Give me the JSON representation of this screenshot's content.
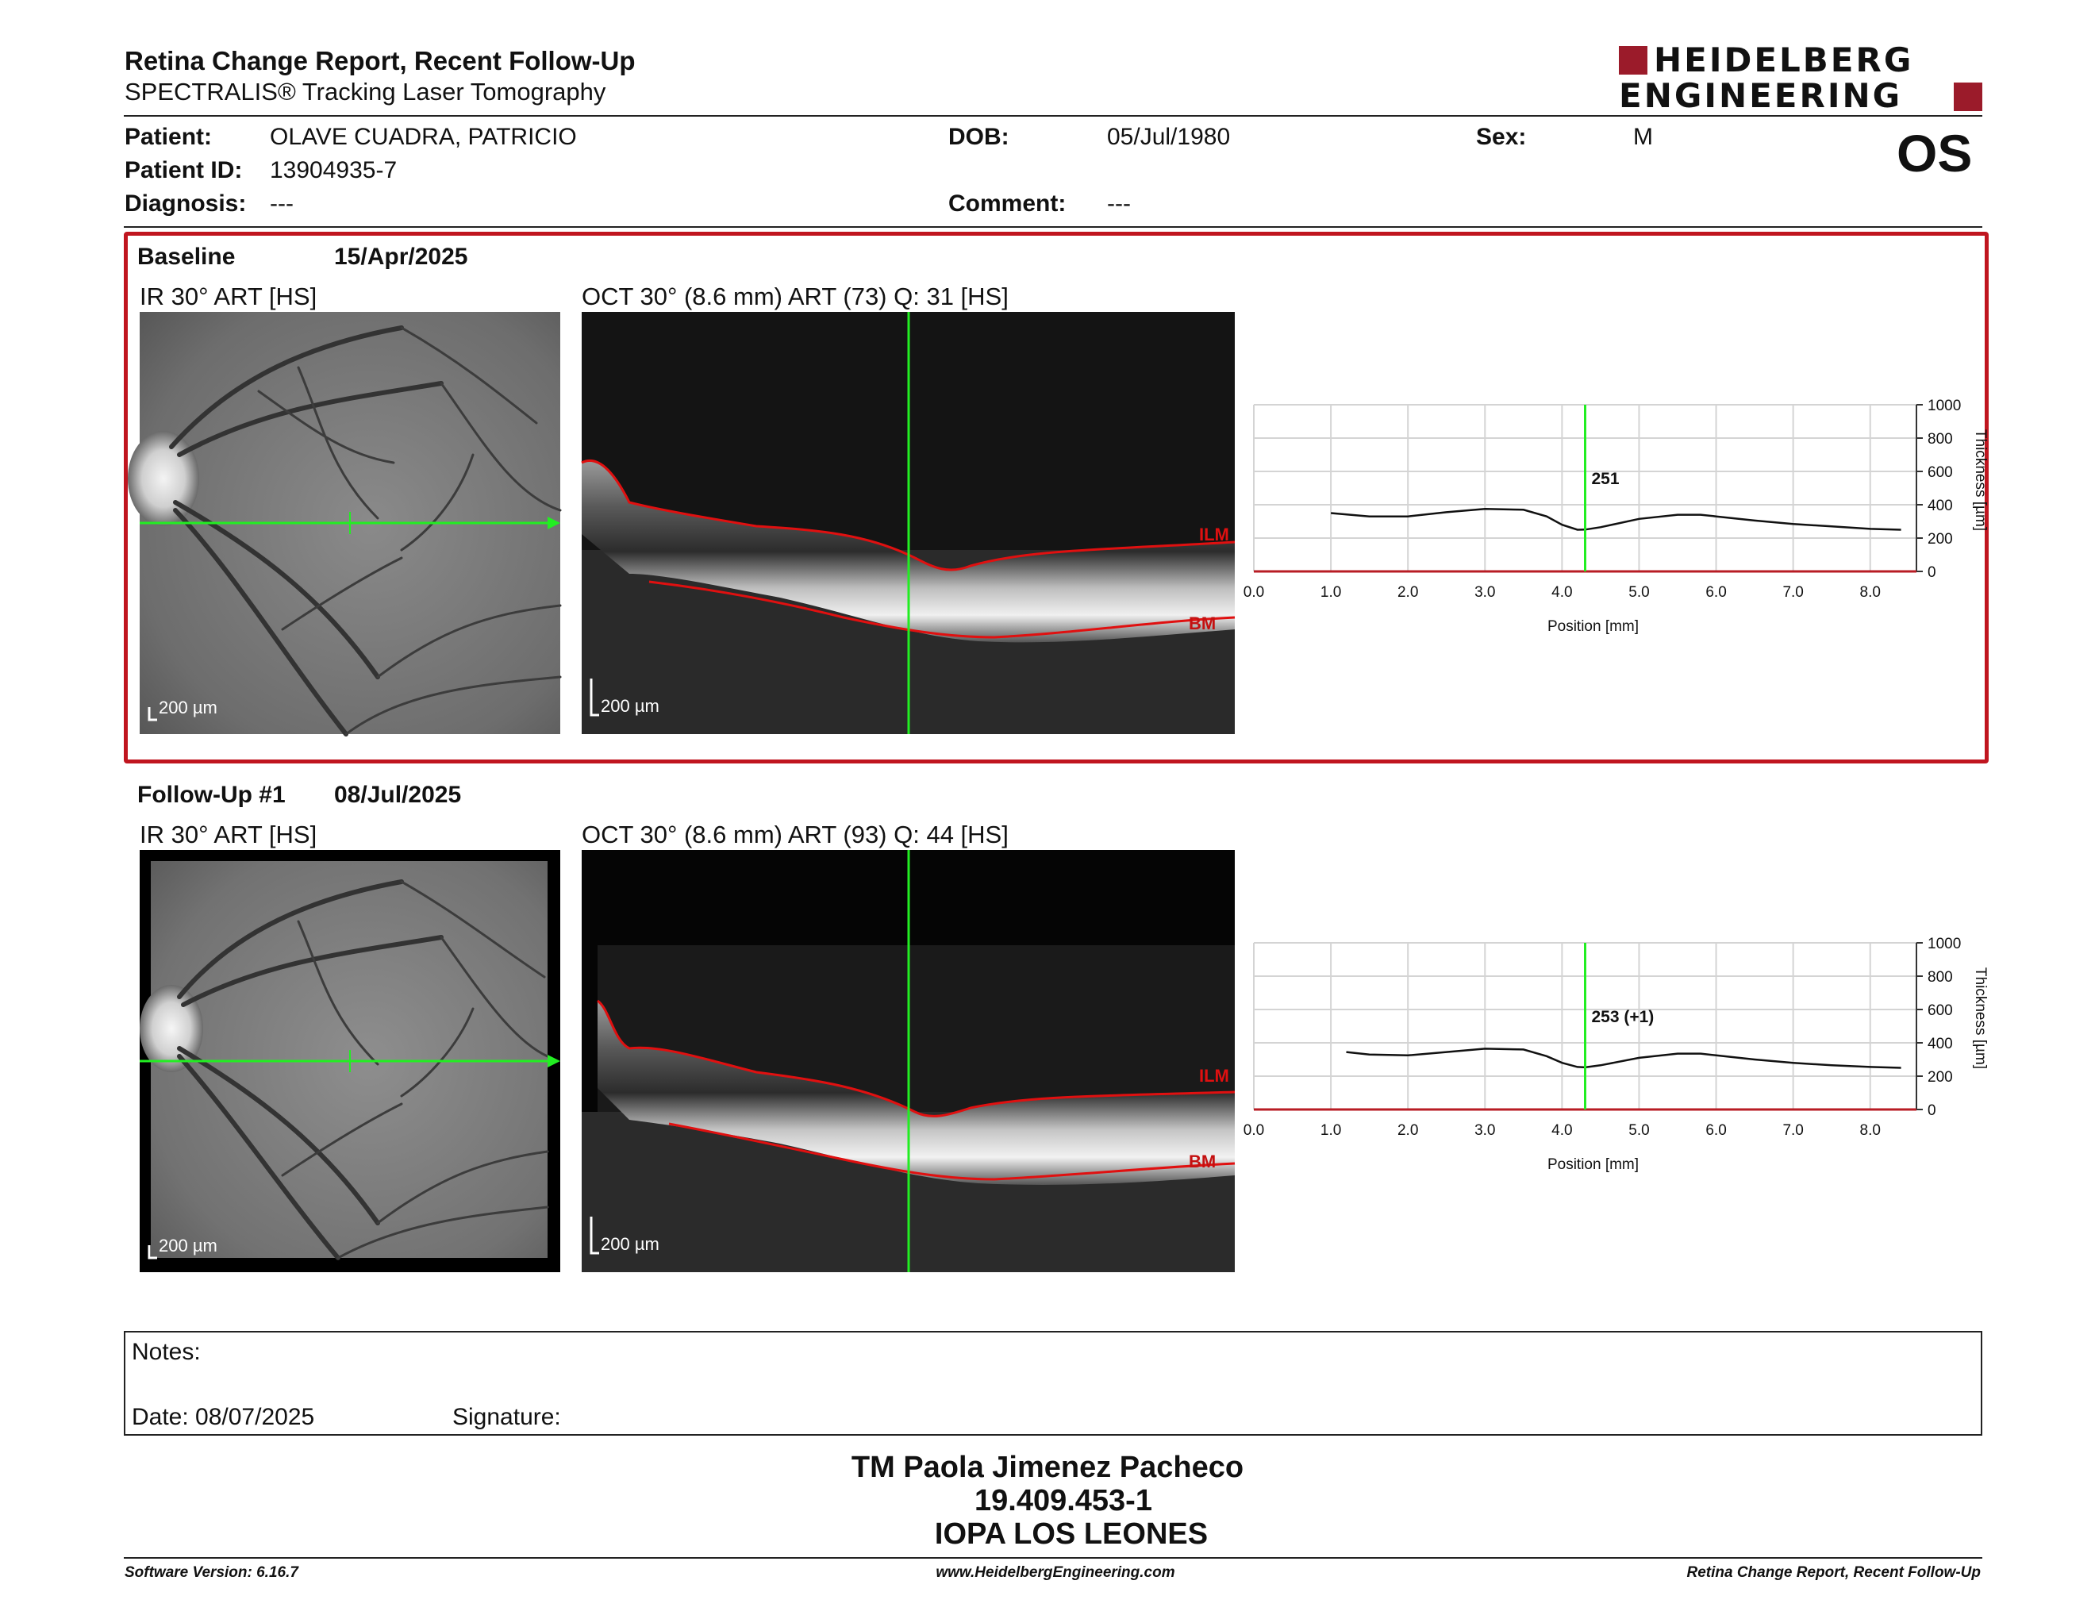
{
  "header": {
    "title": "Retina Change Report, Recent Follow-Up",
    "subtitle": "SPECTRALIS® Tracking Laser Tomography",
    "logo_line1": "HEIDELBERG",
    "logo_line2": "ENGINEERING",
    "eye": "OS"
  },
  "patient": {
    "patient_label": "Patient:",
    "patient_value": "OLAVE CUADRA, PATRICIO",
    "id_label": "Patient ID:",
    "id_value": "13904935-7",
    "diagnosis_label": "Diagnosis:",
    "diagnosis_value": "---",
    "dob_label": "DOB:",
    "dob_value": "05/Jul/1980",
    "comment_label": "Comment:",
    "comment_value": "---",
    "sex_label": "Sex:",
    "sex_value": "M"
  },
  "baseline": {
    "label": "Baseline",
    "date": "15/Apr/2025",
    "ir_caption": "IR 30° ART [HS]",
    "oct_caption": "OCT 30° (8.6 mm) ART (73) Q: 31 [HS]",
    "scale": "200 µm",
    "ilm": "ILM",
    "bm": "BM"
  },
  "followup": {
    "label": "Follow-Up #1",
    "date": "08/Jul/2025",
    "ir_caption": "IR 30° ART [HS]",
    "oct_caption": "OCT 30° (8.6 mm) ART (93) Q: 44 [HS]",
    "scale": "200 µm",
    "ilm": "ILM",
    "bm": "BM"
  },
  "chart_data": [
    {
      "type": "line",
      "xlabel": "Position [mm]",
      "ylabel": "Thickness [µm]",
      "x_ticks": [
        "0.0",
        "1.0",
        "2.0",
        "3.0",
        "4.0",
        "5.0",
        "6.0",
        "7.0",
        "8.0"
      ],
      "y_ticks": [
        "0",
        "200",
        "400",
        "600",
        "800",
        "1000"
      ],
      "xlim": [
        0,
        8.6
      ],
      "ylim": [
        0,
        1000
      ],
      "grid": true,
      "marker_x": 4.3,
      "marker_label": "251",
      "x": [
        1.0,
        1.5,
        2.0,
        2.5,
        3.0,
        3.5,
        3.8,
        4.0,
        4.2,
        4.3,
        4.5,
        5.0,
        5.5,
        5.8,
        6.0,
        6.5,
        7.0,
        7.5,
        8.0,
        8.4
      ],
      "values": [
        350,
        330,
        330,
        355,
        375,
        370,
        330,
        280,
        250,
        251,
        265,
        315,
        340,
        340,
        330,
        305,
        285,
        270,
        255,
        250
      ]
    },
    {
      "type": "line",
      "xlabel": "Position [mm]",
      "ylabel": "Thickness [µm]",
      "x_ticks": [
        "0.0",
        "1.0",
        "2.0",
        "3.0",
        "4.0",
        "5.0",
        "6.0",
        "7.0",
        "8.0"
      ],
      "y_ticks": [
        "0",
        "200",
        "400",
        "600",
        "800",
        "1000"
      ],
      "xlim": [
        0,
        8.6
      ],
      "ylim": [
        0,
        1000
      ],
      "grid": true,
      "marker_x": 4.3,
      "marker_label": "253 (+1)",
      "x": [
        1.2,
        1.5,
        2.0,
        2.5,
        3.0,
        3.5,
        3.8,
        4.0,
        4.2,
        4.3,
        4.5,
        5.0,
        5.5,
        5.8,
        6.0,
        6.5,
        7.0,
        7.5,
        8.0,
        8.4
      ],
      "values": [
        345,
        330,
        325,
        345,
        365,
        360,
        320,
        280,
        255,
        253,
        265,
        310,
        335,
        335,
        325,
        300,
        280,
        265,
        255,
        250
      ]
    }
  ],
  "notes": {
    "label": "Notes:",
    "date_label": "Date: 08/07/2025",
    "signature_label": "Signature:"
  },
  "signature": {
    "name": "TM Paola Jimenez Pacheco",
    "id": "19.409.453-1",
    "org": "IOPA LOS LEONES"
  },
  "footer": {
    "left": "Software Version: 6.16.7",
    "center": "www.HeidelbergEngineering.com",
    "right": "Retina Change Report, Recent Follow-Up"
  }
}
